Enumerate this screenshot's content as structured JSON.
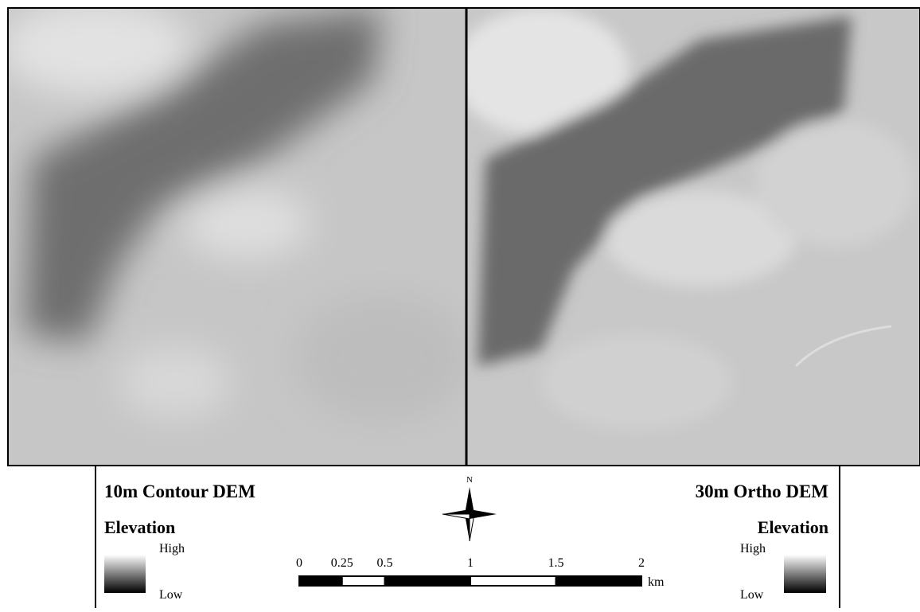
{
  "maps": [
    {
      "title": "10m Contour DEM",
      "legend_title": "Elevation",
      "high_label": "High",
      "low_label": "Low"
    },
    {
      "title": "30m Ortho DEM",
      "legend_title": "Elevation",
      "high_label": "High",
      "low_label": "Low"
    }
  ],
  "north_label": "N",
  "scale_bar": {
    "ticks": [
      0,
      0.25,
      0.5,
      1,
      1.5,
      2
    ],
    "unit": "km"
  }
}
